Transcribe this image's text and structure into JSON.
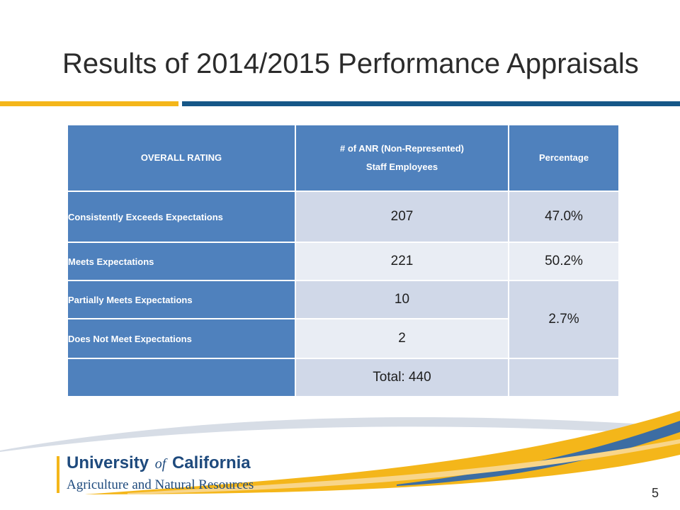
{
  "slide": {
    "title": "Results of 2014/2015 Performance Appraisals",
    "page_number": "5",
    "colors": {
      "gold": "#f4b61a",
      "blue": "#165788",
      "table_header": "#4f81bd"
    }
  },
  "table": {
    "headers": {
      "rating": "OVERALL RATING",
      "count_line1": "# of ANR (Non-Represented)",
      "count_line2": "Staff Employees",
      "percentage": "Percentage"
    },
    "rows": [
      {
        "label": "Consistently  Exceeds Expectations",
        "count": "207",
        "pct": "47.0%"
      },
      {
        "label": "Meets Expectations",
        "count": "221",
        "pct": "50.2%"
      },
      {
        "label": "Partially Meets Expectations",
        "count": "10"
      },
      {
        "label": "Does Not Meet Expectations",
        "count": "2"
      }
    ],
    "combined_pct": "2.7%",
    "total": "Total: 440"
  },
  "logo": {
    "line1_a": "University",
    "line1_of": "of",
    "line1_b": "California",
    "line2": "Agriculture and Natural Resources"
  }
}
